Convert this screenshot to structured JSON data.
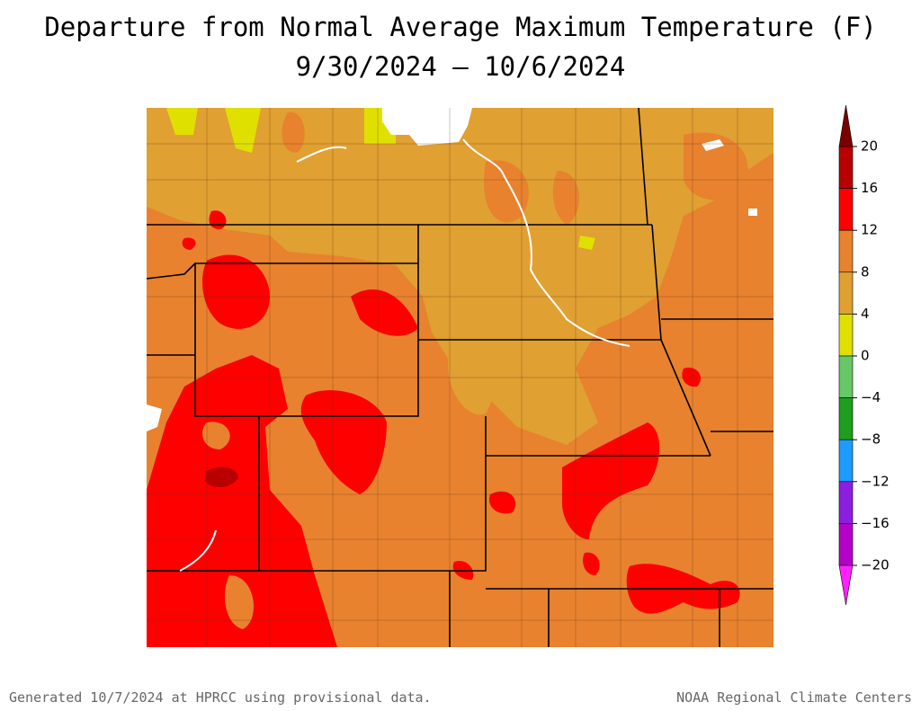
{
  "title": "Departure from Normal Average Maximum Temperature (F)",
  "subtitle": "9/30/2024 – 10/6/2024",
  "legend": {
    "ticks": [
      20,
      16,
      12,
      8,
      4,
      0,
      {
        "value": -4,
        "label": "−4"
      },
      {
        "value": -8,
        "label": "−8"
      },
      {
        "value": -12,
        "label": "−12"
      },
      {
        "value": -16,
        "label": "−16"
      },
      {
        "value": -20,
        "label": "−20"
      }
    ],
    "colors": [
      "#b80000",
      "#ff0000",
      "#e8822e",
      "#e0a032",
      "#e0e000",
      "#66c866",
      "#1e9e1e",
      "#1e9bff",
      "#8c1ee0",
      "#b400c8"
    ],
    "over_color": "#7a0000",
    "under_color": "#ff20ff"
  },
  "footer": {
    "left": "Generated 10/7/2024 at HPRCC using provisional data.",
    "right": "NOAA Regional Climate Centers"
  }
}
